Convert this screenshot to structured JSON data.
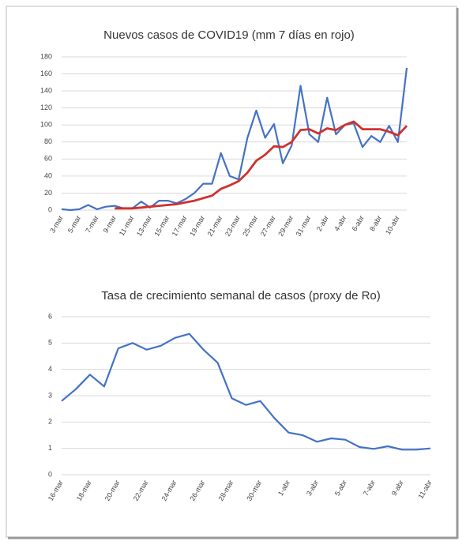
{
  "chart_data": [
    {
      "type": "line",
      "title": "Nuevos casos de COVID19 (mm 7 días en rojo)",
      "categories": [
        "3-mar",
        null,
        "5-mar",
        null,
        "7-mar",
        null,
        "9-mar",
        null,
        "11-mar",
        null,
        "13-mar",
        null,
        "15-mar",
        null,
        "17-mar",
        null,
        "19-mar",
        null,
        "21-mar",
        null,
        "23-mar",
        null,
        "25-mar",
        null,
        "27-mar",
        null,
        "29-mar",
        null,
        "31-mar",
        null,
        "2-abr",
        null,
        "4-abr",
        null,
        "6-abr",
        null,
        "8-abr",
        null,
        "10-abr",
        null
      ],
      "series": [
        {
          "color": "#4472c4",
          "values": [
            1,
            0,
            1,
            6,
            1,
            4,
            5,
            2,
            2,
            10,
            3,
            11,
            11,
            8,
            13,
            20,
            31,
            31,
            67,
            40,
            36,
            85,
            117,
            85,
            101,
            55,
            76,
            146,
            89,
            80,
            132,
            89,
            100,
            102,
            74,
            87,
            80,
            99,
            80,
            167
          ]
        },
        {
          "color": "#d0312d",
          "values": [
            null,
            null,
            null,
            null,
            null,
            null,
            2,
            2,
            2,
            3,
            4,
            5,
            6,
            7,
            9,
            11,
            14,
            17,
            25,
            29,
            34,
            44,
            58,
            65,
            75,
            74,
            80,
            94,
            95,
            90,
            96,
            94,
            100,
            104,
            95,
            95,
            95,
            92,
            88,
            99
          ]
        }
      ],
      "ylim": [
        0,
        180
      ],
      "yticks": [
        0,
        20,
        40,
        60,
        80,
        100,
        120,
        140,
        160,
        180
      ],
      "grid": true
    },
    {
      "type": "line",
      "title": "Tasa de crecimiento semanal de casos (proxy de Ro)",
      "categories": [
        "16-mar",
        null,
        "18-mar",
        null,
        "20-mar",
        null,
        "22-mar",
        null,
        "24-mar",
        null,
        "26-mar",
        null,
        "28-mar",
        null,
        "30-mar",
        null,
        "1-abr",
        null,
        "3-abr",
        null,
        "5-abr",
        null,
        "7-abr",
        null,
        "9-abr",
        null,
        "11-abr"
      ],
      "series": [
        {
          "color": "#4472c4",
          "values": [
            2.8,
            3.25,
            3.8,
            3.35,
            4.8,
            5.0,
            4.75,
            4.9,
            5.2,
            5.35,
            4.75,
            4.25,
            2.9,
            2.65,
            2.8,
            2.15,
            1.6,
            1.5,
            1.25,
            1.38,
            1.33,
            1.05,
            0.98,
            1.08,
            0.95,
            0.95,
            1.0
          ]
        }
      ],
      "ylim": [
        0,
        6
      ],
      "yticks": [
        0,
        1,
        2,
        3,
        4,
        5,
        6
      ],
      "grid": true
    }
  ]
}
